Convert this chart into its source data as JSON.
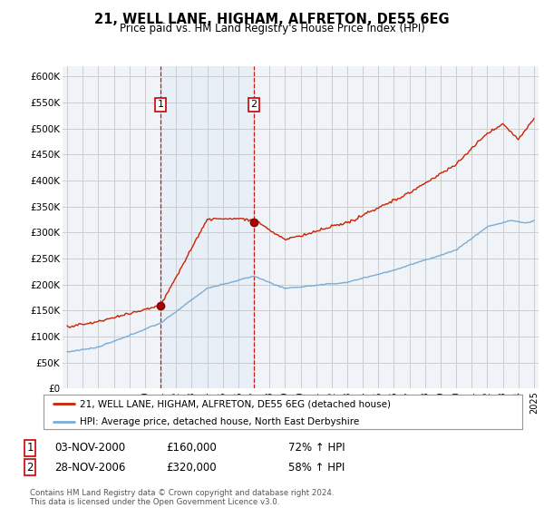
{
  "title": "21, WELL LANE, HIGHAM, ALFRETON, DE55 6EG",
  "subtitle": "Price paid vs. HM Land Registry's House Price Index (HPI)",
  "ylim": [
    0,
    620000
  ],
  "yticks": [
    0,
    50000,
    100000,
    150000,
    200000,
    250000,
    300000,
    350000,
    400000,
    450000,
    500000,
    550000,
    600000
  ],
  "ytick_labels": [
    "£0",
    "£50K",
    "£100K",
    "£150K",
    "£200K",
    "£250K",
    "£300K",
    "£350K",
    "£400K",
    "£450K",
    "£500K",
    "£550K",
    "£600K"
  ],
  "sale1_date": "03-NOV-2000",
  "sale1_price": 160000,
  "sale1_hpi": "72% ↑ HPI",
  "sale2_date": "28-NOV-2006",
  "sale2_price": 320000,
  "sale2_hpi": "58% ↑ HPI",
  "sale1_x": 2001.0,
  "sale2_x": 2007.0,
  "legend_line1": "21, WELL LANE, HIGHAM, ALFRETON, DE55 6EG (detached house)",
  "legend_line2": "HPI: Average price, detached house, North East Derbyshire",
  "footnote": "Contains HM Land Registry data © Crown copyright and database right 2024.\nThis data is licensed under the Open Government Licence v3.0.",
  "line_color_red": "#cc2200",
  "line_color_blue": "#7aacd6",
  "vline_color": "#cc0000",
  "grid_color": "#cccccc",
  "background_color": "#ffffff",
  "plot_bg_color": "#f0f4f8"
}
